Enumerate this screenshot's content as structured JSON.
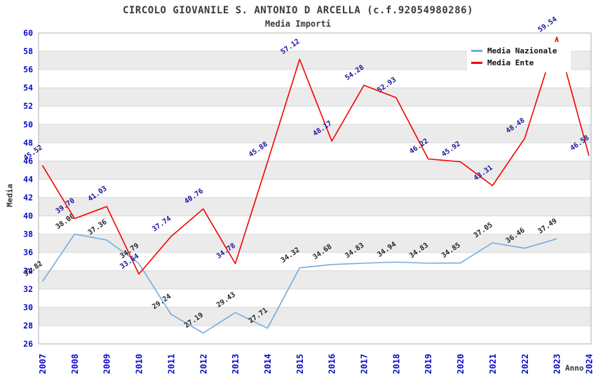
{
  "header": {
    "title": "CIRCOLO GIOVANILE S. ANTONIO D ARCELLA (c.f.92054980286)",
    "subtitle": "Media Importi"
  },
  "chart_data": {
    "type": "line",
    "title": "CIRCOLO GIOVANILE S. ANTONIO D ARCELLA (c.f.92054980286)",
    "subtitle": "Media Importi",
    "xlabel": "Anno",
    "ylabel": "Media",
    "x": [
      2007,
      2008,
      2009,
      2010,
      2011,
      2012,
      2013,
      2014,
      2015,
      2016,
      2017,
      2018,
      2019,
      2020,
      2021,
      2022,
      2023,
      2024
    ],
    "ylim": [
      26,
      60
    ],
    "ytick_step": 2,
    "grid": "horizontal-bands-on",
    "legend_position": "top-right",
    "series": [
      {
        "name": "Media Nazionale",
        "color": "#74abdf",
        "label_color": "#242424",
        "values": [
          32.82,
          38.0,
          37.36,
          34.79,
          29.24,
          27.19,
          29.43,
          27.71,
          34.32,
          34.68,
          34.83,
          34.94,
          34.83,
          34.85,
          37.05,
          36.46,
          37.49,
          null
        ],
        "labels": [
          "32.82",
          "38.00",
          "37.36",
          "34.79",
          "29.24",
          "27.19",
          "29.43",
          "27.71",
          "34.32",
          "34.68",
          "34.83",
          "34.94",
          "34.83",
          "34.85",
          "37.05",
          "36.46",
          "37.49",
          ""
        ]
      },
      {
        "name": "Media Ente",
        "color": "#f40000",
        "label_color": "#16169b",
        "values": [
          45.52,
          39.7,
          41.03,
          33.64,
          37.74,
          40.76,
          34.78,
          45.88,
          57.12,
          48.17,
          54.28,
          52.93,
          46.22,
          45.92,
          43.31,
          48.48,
          59.54,
          46.58
        ],
        "labels": [
          "45.52",
          "39.70",
          "41.03",
          "33.64",
          "37.74",
          "40.76",
          "34.78",
          "45.88",
          "57.12",
          "48.17",
          "54.28",
          "52.93",
          "46.22",
          "45.92",
          "43.31",
          "48.48",
          "59.54",
          "46.58"
        ]
      }
    ],
    "colors": {
      "tick_text": "#0a0acd",
      "band_gray": "#ebebeb",
      "gridline": "#dadada",
      "frame": "#afafaf",
      "title_text": "#3b3b3b"
    }
  }
}
